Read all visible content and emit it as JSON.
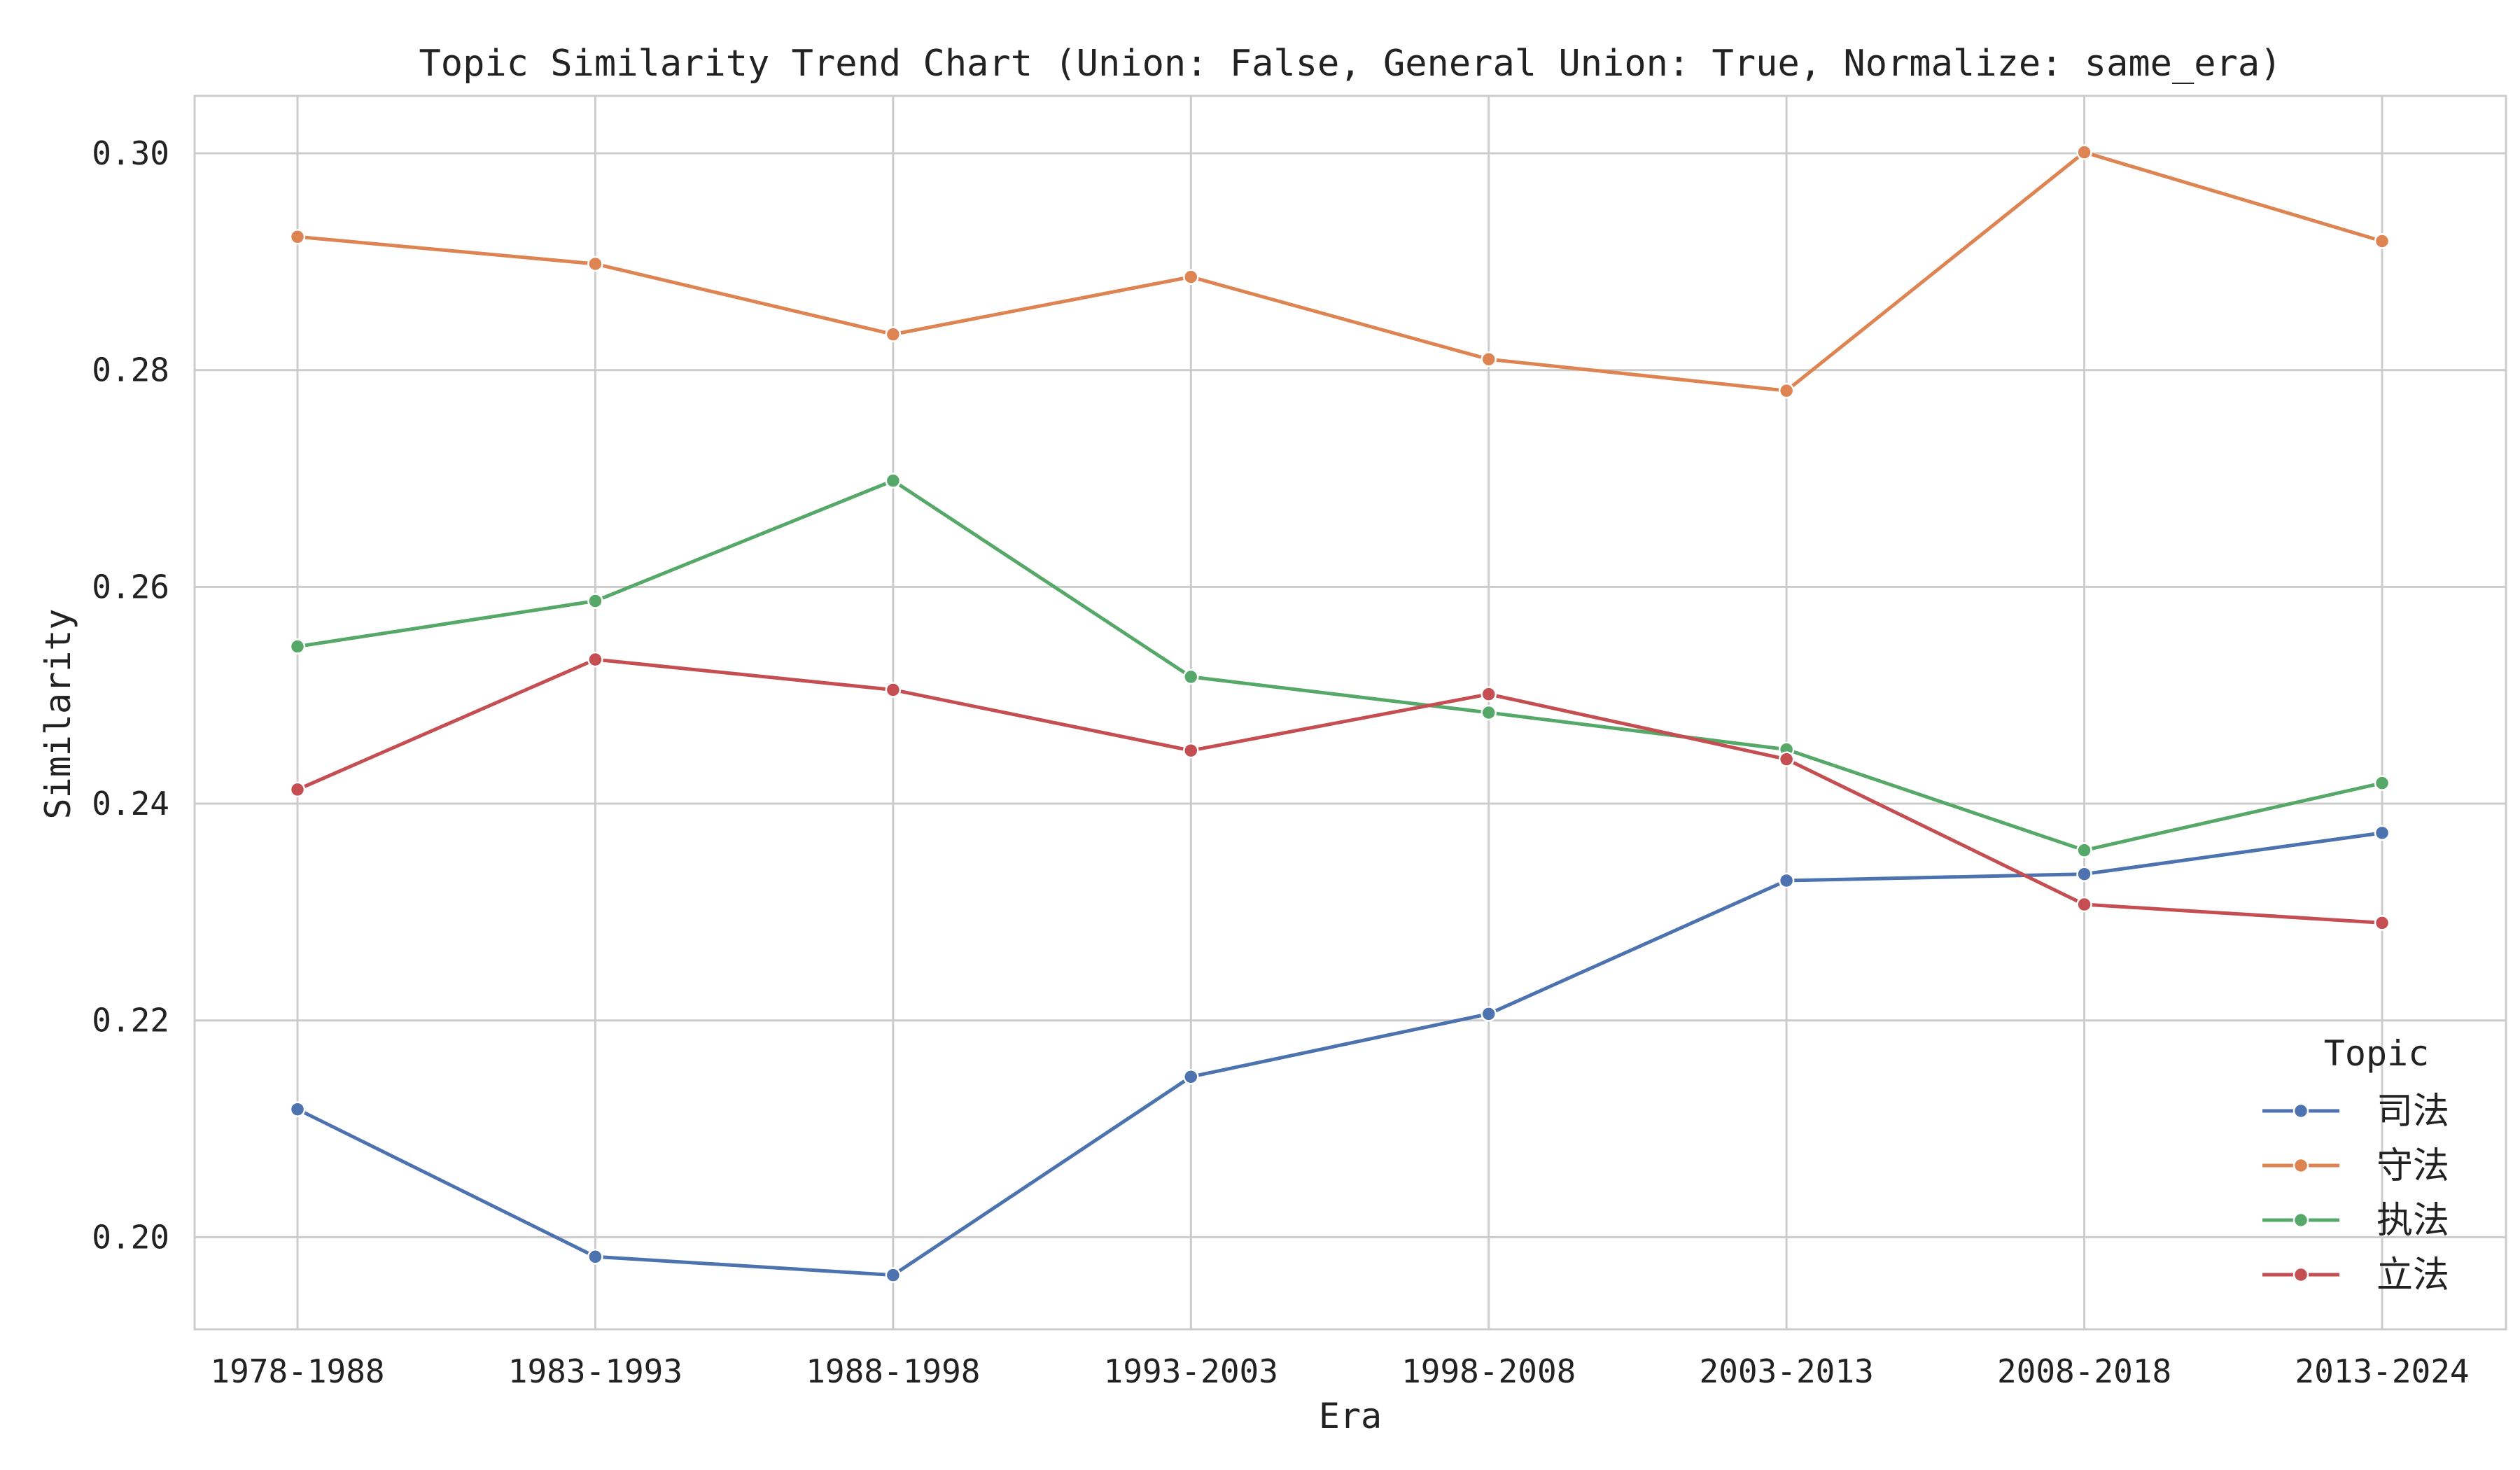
{
  "chart_data": {
    "type": "line",
    "title": "Topic Similarity Trend Chart (Union: False, General Union: True, Normalize: same_era)",
    "xlabel": "Era",
    "ylabel": "Similarity",
    "categories": [
      "1978-1988",
      "1983-1993",
      "1988-1998",
      "1993-2003",
      "1998-2008",
      "2003-2013",
      "2008-2018",
      "2013-2024"
    ],
    "ylim": [
      0.1915,
      0.3053
    ],
    "yticks": [
      0.2,
      0.22,
      0.24,
      0.26,
      0.28,
      0.3
    ],
    "ytick_labels": [
      "0.20",
      "0.22",
      "0.24",
      "0.26",
      "0.28",
      "0.30"
    ],
    "grid": true,
    "legend": {
      "title": "Topic",
      "placement": "lower-right"
    },
    "series": [
      {
        "name": "司法",
        "color": "#4c72b0",
        "values": [
          0.2118,
          0.1982,
          0.1965,
          0.2148,
          0.2206,
          0.2329,
          0.2335,
          0.2373
        ]
      },
      {
        "name": "守法",
        "color": "#dd8452",
        "values": [
          0.2923,
          0.2898,
          0.2833,
          0.2886,
          0.281,
          0.2781,
          0.3001,
          0.2919
        ]
      },
      {
        "name": "执法",
        "color": "#55a868",
        "values": [
          0.2545,
          0.2587,
          0.2698,
          0.2517,
          0.2484,
          0.245,
          0.2357,
          0.2419
        ]
      },
      {
        "name": "立法",
        "color": "#c44e52",
        "values": [
          0.2413,
          0.2533,
          0.2505,
          0.2449,
          0.2501,
          0.2441,
          0.2307,
          0.229
        ]
      }
    ]
  }
}
